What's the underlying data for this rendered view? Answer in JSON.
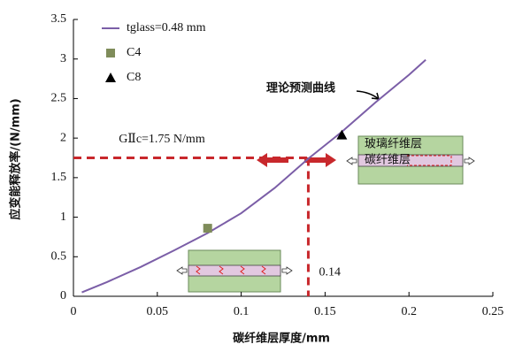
{
  "chart_data": {
    "type": "line",
    "x_label": "碳纤维层厚度/mm",
    "y_label": "应变能释放率/(N/mm)",
    "xlim": [
      0,
      0.25
    ],
    "xticks": [
      0,
      0.05,
      0.1,
      0.15,
      0.2,
      0.25
    ],
    "ylim": [
      0,
      3.5
    ],
    "yticks": [
      0,
      0.5,
      1,
      1.5,
      2,
      2.5,
      3,
      3.5
    ],
    "series": [
      {
        "name": "tglass=0.48 mm",
        "color": "#7b5ea7",
        "marker": "line",
        "x": [
          0.005,
          0.02,
          0.04,
          0.06,
          0.08,
          0.1,
          0.12,
          0.14,
          0.16,
          0.18,
          0.2,
          0.21
        ],
        "values": [
          0.05,
          0.18,
          0.37,
          0.58,
          0.8,
          1.05,
          1.37,
          1.74,
          2.08,
          2.45,
          2.8,
          2.99
        ]
      },
      {
        "name": "C4",
        "color": "#7f8c5a",
        "marker": "square",
        "x": [
          0.08
        ],
        "values": [
          0.86
        ]
      },
      {
        "name": "C8",
        "color": "#000000",
        "marker": "triangle",
        "x": [
          0.16
        ],
        "values": [
          2.04
        ]
      }
    ],
    "threshold": {
      "x": 0.14,
      "x_label": "0.14",
      "y": 1.75,
      "y_label": "GⅡc=1.75 N/mm"
    },
    "curve_annotation": "理论预测曲线",
    "insets": {
      "glass_label": "玻璃纤维层",
      "carbon_label": "碳纤维层"
    }
  }
}
